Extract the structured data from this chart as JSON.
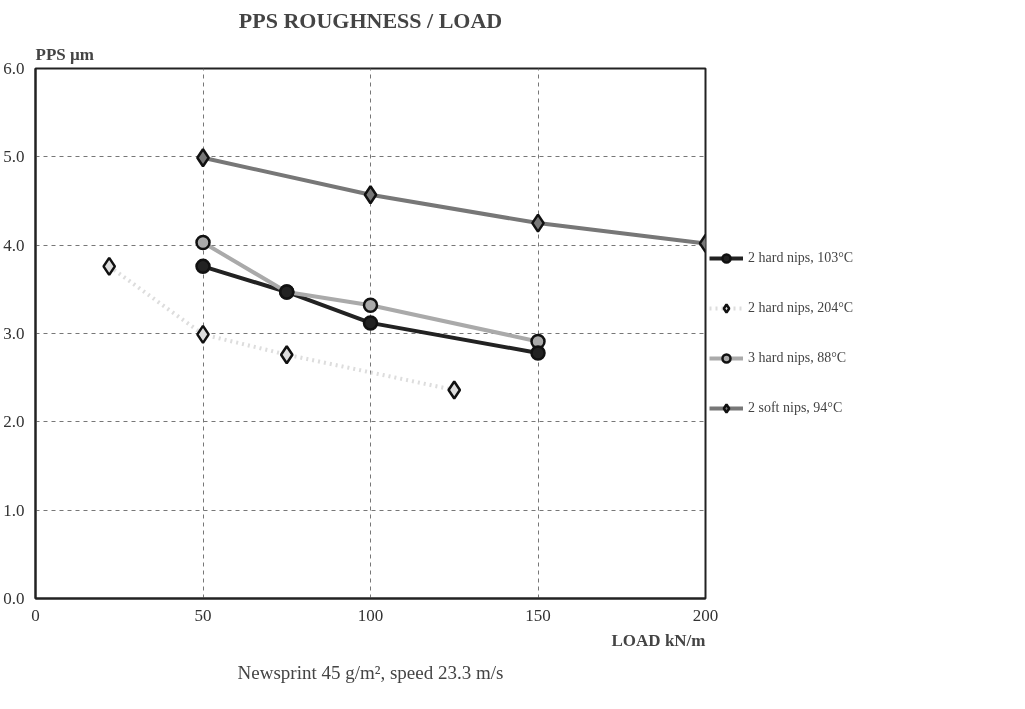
{
  "chart_data": {
    "type": "line",
    "title": "PPS ROUGHNESS / LOAD",
    "ylabel": "PPS µm",
    "xlabel": "LOAD kN/m",
    "annotations": [
      "Newsprint 45 g/m², speed 23.3 m/s"
    ],
    "xlim": [
      0,
      200
    ],
    "xticks": [
      0,
      50,
      100,
      150,
      200
    ],
    "ylim": [
      0,
      6
    ],
    "yticks": [
      {
        "value": 0,
        "label": "0.0"
      },
      {
        "value": 1,
        "label": "1.0"
      },
      {
        "value": 2,
        "label": "2.0"
      },
      {
        "value": 3,
        "label": "3.0"
      },
      {
        "value": 4,
        "label": "4.0"
      },
      {
        "value": 5,
        "label": "5.0"
      },
      {
        "value": 6,
        "label": "6.0"
      }
    ],
    "grid": true,
    "legend": "right",
    "series": [
      {
        "name": "2 hard nips, 103°C",
        "color": "#222222",
        "marker": "circle",
        "line_style": "solid",
        "x": [
          50,
          75,
          100,
          150
        ],
        "values": [
          3.76,
          3.47,
          3.12,
          2.78
        ]
      },
      {
        "name": "2 hard nips, 204°C",
        "color": "#dddddd",
        "marker": "diamond",
        "line_style": "dotted",
        "x": [
          22,
          50,
          75,
          125
        ],
        "values": [
          3.76,
          2.99,
          2.76,
          2.36
        ]
      },
      {
        "name": "3 hard nips, 88°C",
        "color": "#aaaaaa",
        "marker": "circle",
        "line_style": "solid",
        "x": [
          50,
          75,
          100,
          150
        ],
        "values": [
          4.03,
          3.47,
          3.32,
          2.91
        ]
      },
      {
        "name": "2 soft nips, 94°C",
        "color": "#777777",
        "marker": "diamond",
        "line_style": "solid",
        "x": [
          50,
          100,
          150,
          200
        ],
        "values": [
          4.99,
          4.57,
          4.25,
          4.02
        ]
      }
    ]
  }
}
